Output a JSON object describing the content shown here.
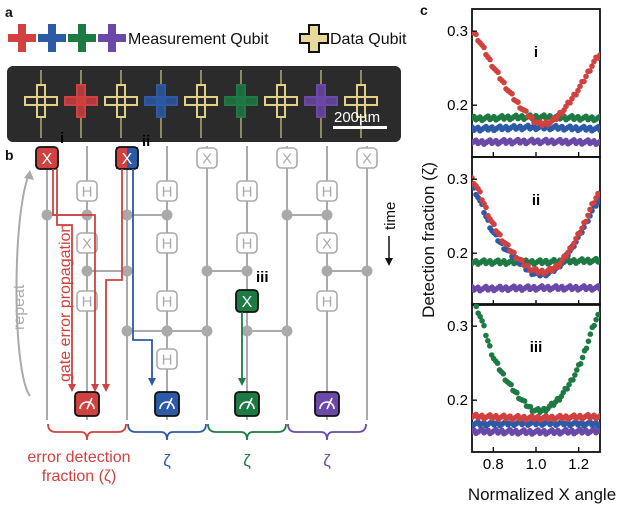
{
  "panel_labels": {
    "a": "a",
    "b": "b",
    "c": "c"
  },
  "legend": {
    "measurement_label": "Measurement Qubit",
    "data_label": "Data Qubit"
  },
  "chip": {
    "scalebar_label": "200µm"
  },
  "circuit": {
    "gate_x": "X",
    "gate_h": "H",
    "markers": {
      "i": "i",
      "ii": "ii",
      "iii": "iii"
    },
    "repeat_label": "repeat",
    "time_label": "time",
    "propagation_label": "gate error propagation",
    "zeta": "ζ",
    "fraction_label_line1": "error detection",
    "fraction_label_line2": "fraction (ζ)"
  },
  "colors": {
    "red": "#d0413f",
    "blue": "#2c5aa6",
    "green": "#1e7a43",
    "purple": "#6b49a8",
    "gray": "#aaaaaa",
    "chip_bg": "#2b2b2b"
  },
  "chart_data": {
    "type": "scatter",
    "xlabel": "Normalized X angle",
    "ylabel": "Detection fraction (ζ)",
    "xlim": [
      0.7,
      1.3
    ],
    "ylim": [
      0.13,
      0.33
    ],
    "xticks": [
      "0.8",
      "1.0",
      "1.2"
    ],
    "yticks": [
      "0.2",
      "0.3"
    ],
    "ytick_values": [
      0.2,
      0.3
    ],
    "xtick_values": [
      0.8,
      1.0,
      1.2
    ],
    "panels": [
      {
        "label": "i",
        "series": [
          {
            "color": "red",
            "x": [
              0.7,
              0.8,
              0.9,
              1.0,
              1.05,
              1.1,
              1.2,
              1.3
            ],
            "y": [
              0.3,
              0.252,
              0.208,
              0.178,
              0.176,
              0.185,
              0.222,
              0.268
            ]
          },
          {
            "color": "green",
            "x": [
              0.7,
              1.0,
              1.3
            ],
            "y": [
              0.182,
              0.184,
              0.182
            ]
          },
          {
            "color": "blue",
            "x": [
              0.7,
              1.0,
              1.3
            ],
            "y": [
              0.168,
              0.17,
              0.168
            ]
          },
          {
            "color": "purple",
            "x": [
              0.7,
              1.0,
              1.3
            ],
            "y": [
              0.15,
              0.151,
              0.15
            ]
          }
        ]
      },
      {
        "label": "ii",
        "series": [
          {
            "color": "red",
            "x": [
              0.7,
              0.8,
              0.9,
              1.0,
              1.1,
              1.2,
              1.3
            ],
            "y": [
              0.3,
              0.238,
              0.198,
              0.176,
              0.183,
              0.225,
              0.282
            ]
          },
          {
            "color": "blue",
            "x": [
              0.7,
              0.8,
              0.9,
              1.0,
              1.1,
              1.2,
              1.3
            ],
            "y": [
              0.29,
              0.228,
              0.194,
              0.172,
              0.181,
              0.222,
              0.272
            ]
          },
          {
            "color": "green",
            "x": [
              0.7,
              1.0,
              1.3
            ],
            "y": [
              0.188,
              0.188,
              0.19
            ]
          },
          {
            "color": "purple",
            "x": [
              0.7,
              1.0,
              1.3
            ],
            "y": [
              0.152,
              0.153,
              0.153
            ]
          }
        ]
      },
      {
        "label": "iii",
        "series": [
          {
            "color": "green",
            "x": [
              0.72,
              0.8,
              0.9,
              1.0,
              1.1,
              1.2,
              1.3
            ],
            "y": [
              0.325,
              0.258,
              0.212,
              0.186,
              0.2,
              0.245,
              0.318
            ]
          },
          {
            "color": "red",
            "x": [
              0.7,
              1.0,
              1.3
            ],
            "y": [
              0.178,
              0.176,
              0.178
            ]
          },
          {
            "color": "blue",
            "x": [
              0.7,
              1.0,
              1.3
            ],
            "y": [
              0.168,
              0.169,
              0.168
            ]
          },
          {
            "color": "purple",
            "x": [
              0.7,
              1.0,
              1.3
            ],
            "y": [
              0.158,
              0.157,
              0.158
            ]
          }
        ]
      }
    ]
  }
}
